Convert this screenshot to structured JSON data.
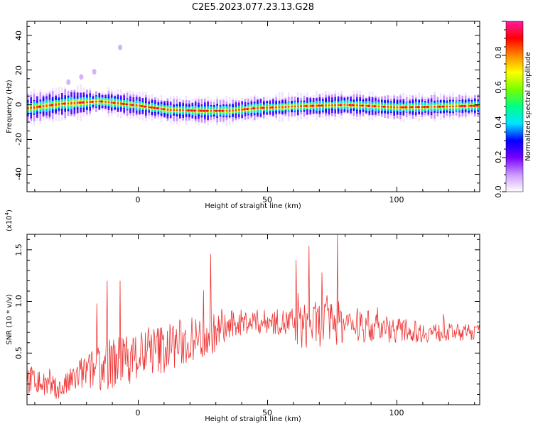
{
  "figure_title": "C2E5.2023.077.23.13.G28",
  "chart_data": [
    {
      "type": "heatmap",
      "xlabel": "Height of straight line (km)",
      "ylabel": "Frequency (Hz)",
      "xlim": [
        -43,
        132
      ],
      "ylim": [
        -50,
        48
      ],
      "xticks": [
        "0",
        "50",
        "100"
      ],
      "yticks": [
        "-40",
        "-20",
        "0",
        "20",
        "40"
      ],
      "colorbar": {
        "label": "Normalized spectral amplitude",
        "range": [
          0,
          1
        ],
        "ticks": [
          "0.0",
          "0.2",
          "0.4",
          "0.6",
          "0.8"
        ],
        "colors": [
          "#ffffff",
          "#cc99ff",
          "#7700ff",
          "#0000ff",
          "#00e5ff",
          "#00ff88",
          "#77ff00",
          "#ffff00",
          "#ff8800",
          "#ff0000",
          "#ff1aa0"
        ]
      },
      "ridge_frequency_hz": [
        {
          "x": -43,
          "y": -2
        },
        {
          "x": -30,
          "y": 0.5
        },
        {
          "x": -15,
          "y": 2
        },
        {
          "x": 0,
          "y": -0.5
        },
        {
          "x": 12,
          "y": -3
        },
        {
          "x": 25,
          "y": -3.5
        },
        {
          "x": 35,
          "y": -3.5
        },
        {
          "x": 45,
          "y": -2
        },
        {
          "x": 60,
          "y": -1
        },
        {
          "x": 80,
          "y": 0
        },
        {
          "x": 100,
          "y": -1.5
        },
        {
          "x": 120,
          "y": -1
        },
        {
          "x": 132,
          "y": -0.5
        }
      ],
      "outlier_patches": [
        {
          "x": -7,
          "y": 33
        },
        {
          "x": -27,
          "y": 13
        },
        {
          "x": -22,
          "y": 16
        },
        {
          "x": -17,
          "y": 19
        }
      ]
    },
    {
      "type": "line",
      "xlabel": "Height of straight line (km)",
      "ylabel": "SNR (10 * v/v)",
      "scale_label": "(x10",
      "scale_exponent": "4",
      "scale_close": ")",
      "xlim": [
        -43,
        132
      ],
      "ylim": [
        0,
        16500
      ],
      "xticks": [
        "0",
        "50",
        "100"
      ],
      "yticks": [
        "0.5",
        "1.0",
        "1.5"
      ],
      "color": "#ee3333",
      "envelope": [
        {
          "x": -43,
          "base": 2500,
          "amp": 3000
        },
        {
          "x": -30,
          "base": 1500,
          "amp": 2000
        },
        {
          "x": -22,
          "base": 3000,
          "amp": 3500
        },
        {
          "x": -10,
          "base": 4000,
          "amp": 5000
        },
        {
          "x": 10,
          "base": 5500,
          "amp": 5000
        },
        {
          "x": 25,
          "base": 6500,
          "amp": 4500
        },
        {
          "x": 40,
          "base": 8000,
          "amp": 2500
        },
        {
          "x": 55,
          "base": 8000,
          "amp": 2500
        },
        {
          "x": 62,
          "base": 7500,
          "amp": 4500
        },
        {
          "x": 75,
          "base": 8000,
          "amp": 4500
        },
        {
          "x": 90,
          "base": 7500,
          "amp": 3000
        },
        {
          "x": 110,
          "base": 7000,
          "amp": 2000
        },
        {
          "x": 132,
          "base": 7000,
          "amp": 1500
        }
      ],
      "peaks": [
        {
          "x": -16,
          "y": 9800
        },
        {
          "x": -12,
          "y": 12000
        },
        {
          "x": -7,
          "y": 12000
        },
        {
          "x": 28,
          "y": 14600
        },
        {
          "x": 61,
          "y": 14000
        },
        {
          "x": 66,
          "y": 15400
        },
        {
          "x": 77,
          "y": 16500
        },
        {
          "x": 71,
          "y": 12800
        }
      ]
    }
  ]
}
